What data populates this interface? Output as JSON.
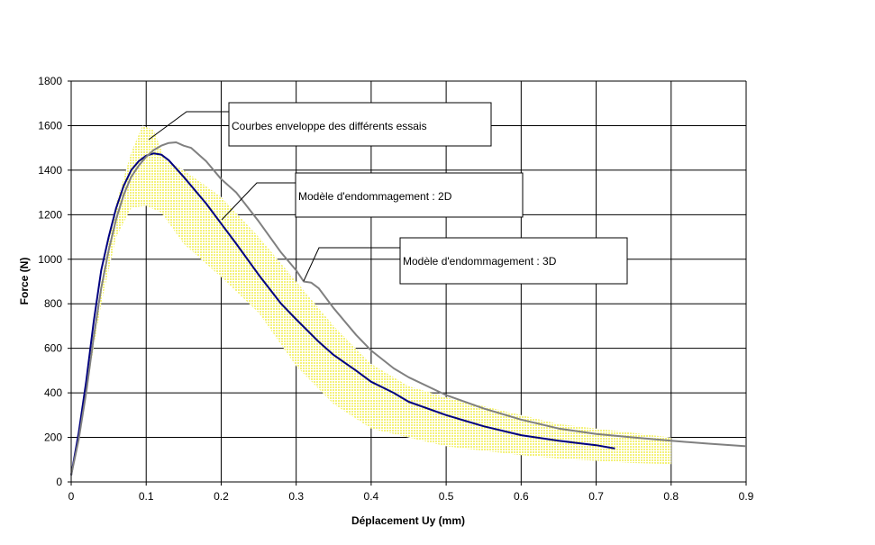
{
  "chart_data": {
    "type": "line",
    "title": "",
    "xlabel": "Déplacement Uy (mm)",
    "ylabel": "Force (N)",
    "xlim": [
      0,
      0.9
    ],
    "ylim": [
      0,
      1800
    ],
    "x_ticks": [
      0,
      0.1,
      0.2,
      0.3,
      0.4,
      0.5,
      0.6,
      0.7,
      0.8,
      0.9
    ],
    "x_tick_labels": [
      "0",
      "0.1",
      "0.2",
      "0.3",
      "0.4",
      "0.5",
      "0.6",
      "0.7",
      "0.8",
      "0.9"
    ],
    "y_ticks": [
      0,
      200,
      400,
      600,
      800,
      1000,
      1200,
      1400,
      1600,
      1800
    ],
    "y_tick_labels": [
      "0",
      "200",
      "400",
      "600",
      "800",
      "1000",
      "1200",
      "1400",
      "1600",
      "1800"
    ],
    "grid": true,
    "legend": "none",
    "envelope": {
      "color": "#ffff99",
      "upper": [
        [
          0,
          20
        ],
        [
          0.02,
          450
        ],
        [
          0.04,
          900
        ],
        [
          0.06,
          1250
        ],
        [
          0.08,
          1480
        ],
        [
          0.095,
          1600
        ],
        [
          0.11,
          1580
        ],
        [
          0.125,
          1450
        ],
        [
          0.15,
          1400
        ],
        [
          0.2,
          1280
        ],
        [
          0.25,
          1100
        ],
        [
          0.3,
          900
        ],
        [
          0.35,
          700
        ],
        [
          0.4,
          530
        ],
        [
          0.45,
          430
        ],
        [
          0.5,
          380
        ],
        [
          0.55,
          340
        ],
        [
          0.6,
          300
        ],
        [
          0.65,
          260
        ],
        [
          0.7,
          240
        ],
        [
          0.75,
          220
        ],
        [
          0.8,
          200
        ]
      ],
      "lower": [
        [
          0.8,
          80
        ],
        [
          0.75,
          85
        ],
        [
          0.7,
          95
        ],
        [
          0.65,
          105
        ],
        [
          0.6,
          120
        ],
        [
          0.55,
          140
        ],
        [
          0.5,
          160
        ],
        [
          0.45,
          200
        ],
        [
          0.4,
          240
        ],
        [
          0.35,
          350
        ],
        [
          0.3,
          520
        ],
        [
          0.25,
          760
        ],
        [
          0.2,
          920
        ],
        [
          0.15,
          1070
        ],
        [
          0.12,
          1210
        ],
        [
          0.1,
          1240
        ],
        [
          0.08,
          1230
        ],
        [
          0.06,
          1100
        ],
        [
          0.04,
          800
        ],
        [
          0.02,
          400
        ],
        [
          0,
          20
        ]
      ]
    },
    "series": [
      {
        "color": "#000080",
        "values": [
          [
            0,
            30
          ],
          [
            0.01,
            220
          ],
          [
            0.02,
            450
          ],
          [
            0.03,
            720
          ],
          [
            0.04,
            950
          ],
          [
            0.05,
            1100
          ],
          [
            0.06,
            1230
          ],
          [
            0.07,
            1330
          ],
          [
            0.08,
            1400
          ],
          [
            0.09,
            1440
          ],
          [
            0.1,
            1465
          ],
          [
            0.11,
            1475
          ],
          [
            0.12,
            1470
          ],
          [
            0.13,
            1445
          ],
          [
            0.15,
            1370
          ],
          [
            0.18,
            1250
          ],
          [
            0.2,
            1160
          ],
          [
            0.22,
            1070
          ],
          [
            0.25,
            930
          ],
          [
            0.28,
            800
          ],
          [
            0.3,
            730
          ],
          [
            0.33,
            630
          ],
          [
            0.35,
            570
          ],
          [
            0.38,
            500
          ],
          [
            0.4,
            450
          ],
          [
            0.43,
            400
          ],
          [
            0.45,
            360
          ],
          [
            0.5,
            300
          ],
          [
            0.55,
            250
          ],
          [
            0.6,
            210
          ],
          [
            0.65,
            185
          ],
          [
            0.7,
            165
          ],
          [
            0.725,
            150
          ]
        ]
      },
      {
        "color": "#808080",
        "values": [
          [
            0,
            30
          ],
          [
            0.01,
            190
          ],
          [
            0.02,
            400
          ],
          [
            0.03,
            650
          ],
          [
            0.04,
            870
          ],
          [
            0.05,
            1040
          ],
          [
            0.06,
            1180
          ],
          [
            0.07,
            1290
          ],
          [
            0.08,
            1370
          ],
          [
            0.09,
            1420
          ],
          [
            0.1,
            1460
          ],
          [
            0.11,
            1490
          ],
          [
            0.12,
            1510
          ],
          [
            0.13,
            1522
          ],
          [
            0.14,
            1525
          ],
          [
            0.15,
            1510
          ],
          [
            0.16,
            1500
          ],
          [
            0.18,
            1440
          ],
          [
            0.2,
            1360
          ],
          [
            0.22,
            1300
          ],
          [
            0.25,
            1170
          ],
          [
            0.28,
            1030
          ],
          [
            0.3,
            950
          ],
          [
            0.31,
            900
          ],
          [
            0.32,
            895
          ],
          [
            0.33,
            870
          ],
          [
            0.35,
            780
          ],
          [
            0.38,
            660
          ],
          [
            0.4,
            590
          ],
          [
            0.43,
            510
          ],
          [
            0.45,
            470
          ],
          [
            0.5,
            390
          ],
          [
            0.55,
            330
          ],
          [
            0.6,
            280
          ],
          [
            0.65,
            240
          ],
          [
            0.7,
            215
          ],
          [
            0.75,
            200
          ],
          [
            0.8,
            185
          ],
          [
            0.85,
            172
          ],
          [
            0.9,
            160
          ]
        ]
      }
    ],
    "annotations": [
      {
        "id": "envelope",
        "text": "Courbes enveloppe des différents essais"
      },
      {
        "id": "model2d",
        "text": "Modèle d'endommagement : 2D"
      },
      {
        "id": "model3d",
        "text": "Modèle d'endommagement :  3D"
      }
    ]
  }
}
